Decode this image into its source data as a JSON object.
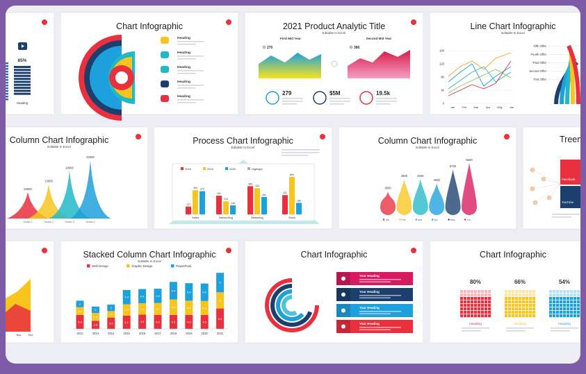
{
  "slides": [
    {
      "stat": "85%",
      "label": "Heading"
    },
    {
      "title": "Chart Infographic",
      "items": [
        "Heading",
        "Heading",
        "Heading",
        "Heading",
        "Heading"
      ]
    },
    {
      "title": "2021 Product Analytic Title",
      "subtitle": "Editable In Excel",
      "charts": [
        {
          "label": "First Mid Year",
          "value": "270"
        },
        {
          "label": "Second Mid Year",
          "value": "380"
        }
      ],
      "stats": [
        "279",
        "$5M",
        "19.5k"
      ]
    },
    {
      "title": "Line Chart Infographic",
      "subtitle": "Editable In Excel",
      "yticks": [
        "160",
        "120",
        "80",
        "40",
        "0"
      ],
      "x": [
        "Jan",
        "Feb",
        "Mar",
        "Apr",
        "May",
        "Jun"
      ],
      "offers": [
        "Fifth Offer",
        "Fourth Offer",
        "Third Offer",
        "Second Offer",
        "First Offer"
      ]
    },
    {
      "title": "Column Chart Infographic",
      "subtitle": "Editable In Excel",
      "series": [
        "Series 1",
        "Series 2",
        "Series 3",
        "Series 4"
      ],
      "values": [
        10000,
        13000,
        18000,
        22000
      ]
    },
    {
      "title": "Process Chart Infographic",
      "subtitle": "Editable In Excel",
      "legend": [
        "2018",
        "2019",
        "2020",
        "Highlight"
      ],
      "categories": [
        "Sales",
        "Networking",
        "Marketing",
        "Stock"
      ],
      "values": [
        [
          127,
          390,
          374
        ],
        [
          302,
          213,
          146
        ],
        [
          455,
          423,
          281
        ],
        [
          311,
          604,
          186
        ]
      ]
    },
    {
      "title": "Column Chart Infographic",
      "subtitle": "Editable In Excel",
      "categories": [
        "Jan",
        "Feb",
        "Mar",
        "Apr",
        "May",
        "Jun"
      ],
      "values": [
        3000,
        4500,
        4500,
        4000,
        5700,
        6500
      ]
    },
    {
      "title": "Treema",
      "labels": [
        "Facebook",
        "YouTube"
      ]
    },
    {
      "x": [
        "Nov",
        "Dec"
      ]
    },
    {
      "title": "Stacked Column Chart Infographic",
      "subtitle": "Editable In Excel",
      "legend": [
        "Web Design",
        "Graphic Design",
        "PowerPoint"
      ],
      "years": [
        "2012",
        "2013",
        "2014",
        "2015",
        "2016",
        "2017",
        "2018",
        "2019",
        "2020",
        "2021"
      ],
      "values": [
        [
          4.3,
          2.5,
          3.5,
          4.1,
          4.4,
          4.3,
          4.3,
          4.3,
          4.3,
          6.3
        ],
        [
          2.4,
          2.4,
          2,
          3.5,
          3.5,
          3.7,
          4.8,
          4.4,
          4.3,
          5
        ],
        [
          2,
          2,
          2,
          4.4,
          4.4,
          4.4,
          5.4,
          5.4,
          5.4,
          6
        ]
      ]
    },
    {
      "title": "Chart Infographic",
      "items": [
        "Your Heading",
        "Your Heading",
        "Your Heading",
        "Your Heading"
      ]
    },
    {
      "title": "Chart Infographic",
      "items": [
        {
          "value": "80%",
          "label": "Heading"
        },
        {
          "value": "66%",
          "label": "Heading"
        },
        {
          "value": "54%",
          "label": "Heading"
        }
      ]
    }
  ]
}
